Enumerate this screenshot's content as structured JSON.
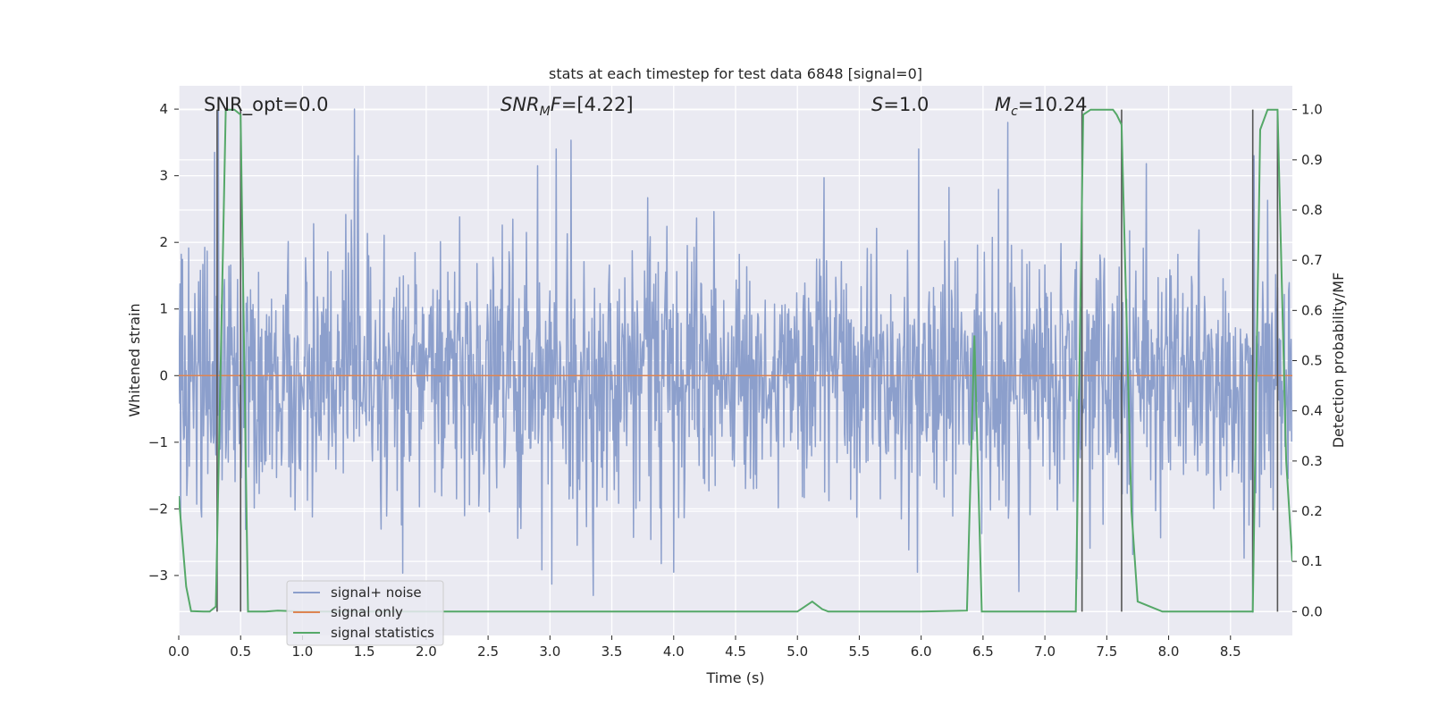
{
  "chart_data": {
    "type": "line",
    "title": "stats at each timestep for test data 6848 [signal=0]",
    "xlabel": "Time (s)",
    "ylabel": "Whitened strain",
    "y2label": "Detection probability/MF",
    "xlim": [
      0.0,
      9.0
    ],
    "ylim": [
      -3.9,
      4.35
    ],
    "y2lim": [
      -0.0475,
      1.0475
    ],
    "xticks": [
      0.0,
      0.5,
      1.0,
      1.5,
      2.0,
      2.5,
      3.0,
      3.5,
      4.0,
      4.5,
      5.0,
      5.5,
      6.0,
      6.5,
      7.0,
      7.5,
      8.0,
      8.5
    ],
    "xtick_labels": [
      "0.0",
      "0.5",
      "1.0",
      "1.5",
      "2.0",
      "2.5",
      "3.0",
      "3.5",
      "4.0",
      "4.5",
      "5.0",
      "5.5",
      "6.0",
      "6.5",
      "7.0",
      "7.5",
      "8.0",
      "8.5"
    ],
    "yticks": [
      -3,
      -2,
      -1,
      0,
      1,
      2,
      3,
      4
    ],
    "ytick_labels": [
      "−3",
      "−2",
      "−1",
      "0",
      "1",
      "2",
      "3",
      "4"
    ],
    "y2ticks": [
      0.0,
      0.1,
      0.2,
      0.3,
      0.4,
      0.5,
      0.6,
      0.7,
      0.8,
      0.9,
      1.0
    ],
    "y2tick_labels": [
      "0.0",
      "0.1",
      "0.2",
      "0.3",
      "0.4",
      "0.5",
      "0.6",
      "0.7",
      "0.8",
      "0.9",
      "1.0"
    ],
    "annotations": {
      "snr_opt": "SNR_opt=0.0",
      "snr_mf_main": "SNR",
      "snr_mf_sub": "M",
      "snr_mf_tail": "F",
      "snr_mf_value": "=[4.22]",
      "s_main": "S",
      "s_value": "=1.0",
      "mc_main": "M",
      "mc_sub": "c",
      "mc_value": "=10.24"
    },
    "legend": {
      "position": "lower-left",
      "entries": [
        {
          "label": "signal+ noise",
          "color": "#8c9fcc"
        },
        {
          "label": "signal only",
          "color": "#dd8452"
        },
        {
          "label": "signal statistics",
          "color": "#55a868"
        }
      ]
    },
    "noise_series": {
      "name": "signal+ noise",
      "color": "#8c9fcc",
      "duration": 9.0,
      "samples": 1800,
      "seed": 6848,
      "clip": [
        -3.55,
        4.0
      ],
      "peaks": [
        {
          "x": 0.29,
          "y": 3.35
        },
        {
          "x": 0.32,
          "y": 4.0
        },
        {
          "x": 1.42,
          "y": 4.0
        },
        {
          "x": 1.45,
          "y": 3.3
        },
        {
          "x": 3.05,
          "y": 3.4
        },
        {
          "x": 2.9,
          "y": 3.15
        },
        {
          "x": 5.98,
          "y": 3.4
        },
        {
          "x": 6.7,
          "y": 3.8
        },
        {
          "x": 8.69,
          "y": 3.3
        },
        {
          "x": 3.35,
          "y": -3.3
        },
        {
          "x": 8.68,
          "y": -3.55
        },
        {
          "x": 4.0,
          "y": -2.95
        },
        {
          "x": 5.97,
          "y": -2.95
        },
        {
          "x": 7.26,
          "y": -3.05
        }
      ]
    },
    "signal_series": {
      "name": "signal only",
      "color": "#dd8452",
      "x": [
        0.0,
        9.0
      ],
      "y": [
        0.0,
        0.0
      ]
    },
    "stats_series": {
      "name": "signal statistics",
      "color": "#55a868",
      "axis": "right",
      "x": [
        0.0,
        0.06,
        0.1,
        0.2,
        0.25,
        0.3,
        0.38,
        0.45,
        0.5,
        0.56,
        0.6,
        0.7,
        0.8,
        1.0,
        2.0,
        3.0,
        4.0,
        5.0,
        5.06,
        5.12,
        5.2,
        5.25,
        5.3,
        6.0,
        6.37,
        6.43,
        6.49,
        6.55,
        7.0,
        7.25,
        7.31,
        7.37,
        7.45,
        7.55,
        7.58,
        7.62,
        7.7,
        7.75,
        7.85,
        7.95,
        8.0,
        8.5,
        8.68,
        8.74,
        8.8,
        8.88,
        8.95,
        9.0
      ],
      "y": [
        0.23,
        0.05,
        0.001,
        0.0,
        0.0,
        0.01,
        1.0,
        1.0,
        0.99,
        0.0,
        0.0,
        0.0,
        0.002,
        0.0,
        0.0,
        0.0,
        0.0,
        0.0,
        0.01,
        0.02,
        0.005,
        0.0,
        0.0,
        0.0,
        0.002,
        0.55,
        0.0,
        0.0,
        0.0,
        0.0,
        0.99,
        1.0,
        1.0,
        1.0,
        0.99,
        0.97,
        0.2,
        0.02,
        0.01,
        0.0,
        0.0,
        0.0,
        0.0,
        0.96,
        1.0,
        1.0,
        0.3,
        0.1
      ]
    },
    "vertical_lines": {
      "color": "#555555",
      "x": [
        0.31,
        0.5,
        7.3,
        7.62,
        8.68,
        8.88
      ]
    }
  }
}
